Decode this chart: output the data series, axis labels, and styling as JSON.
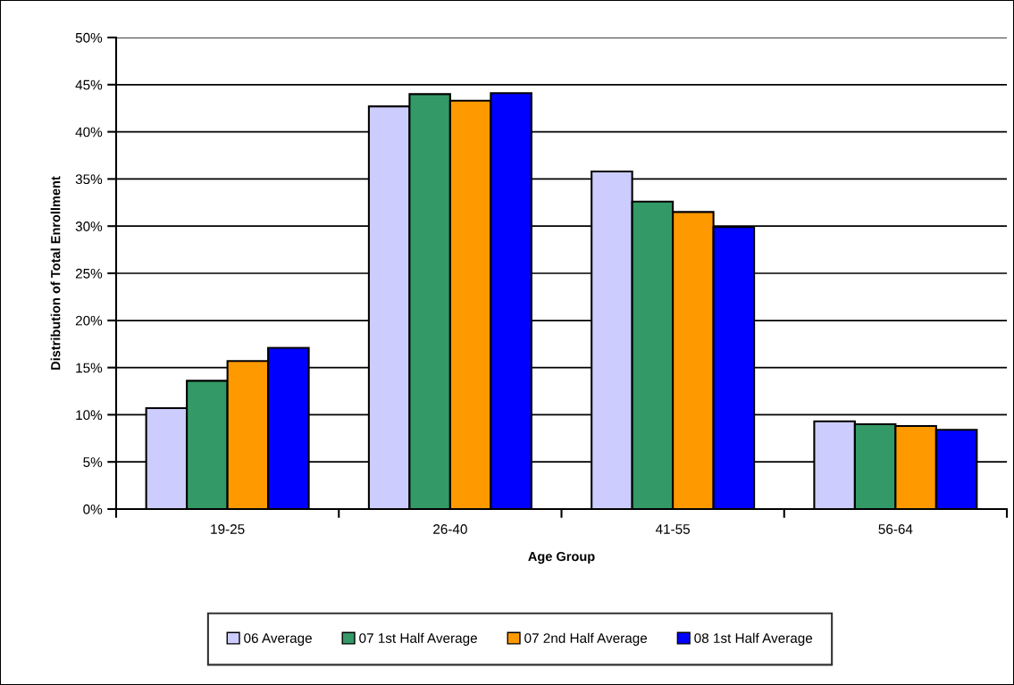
{
  "chart_data": {
    "type": "bar",
    "xlabel": "Age Group",
    "ylabel": "Distribution of Total Enrollment",
    "categories": [
      "19-25",
      "26-40",
      "41-55",
      "56-64"
    ],
    "series": [
      {
        "name": "06 Average",
        "color": "#ccccff",
        "values": [
          10.7,
          42.7,
          35.8,
          9.3
        ]
      },
      {
        "name": "07 1st Half Average",
        "color": "#339966",
        "values": [
          13.6,
          44.0,
          32.6,
          9.0
        ]
      },
      {
        "name": "07 2nd Half Average",
        "color": "#ff9900",
        "values": [
          15.7,
          43.3,
          31.5,
          8.8
        ]
      },
      {
        "name": "08 1st Half Average",
        "color": "#0000ff",
        "values": [
          17.1,
          44.1,
          29.9,
          8.4
        ]
      }
    ],
    "ylim": [
      0,
      50
    ],
    "yticks": [
      {
        "value": 0,
        "label": "0%"
      },
      {
        "value": 5,
        "label": "5%"
      },
      {
        "value": 10,
        "label": "10%"
      },
      {
        "value": 15,
        "label": "15%"
      },
      {
        "value": 20,
        "label": "20%"
      },
      {
        "value": 25,
        "label": "25%"
      },
      {
        "value": 30,
        "label": "30%"
      },
      {
        "value": 35,
        "label": "35%"
      },
      {
        "value": 40,
        "label": "40%"
      },
      {
        "value": 45,
        "label": "45%"
      },
      {
        "value": 50,
        "label": "50%"
      }
    ],
    "grid": "y",
    "legend": "bottom"
  }
}
